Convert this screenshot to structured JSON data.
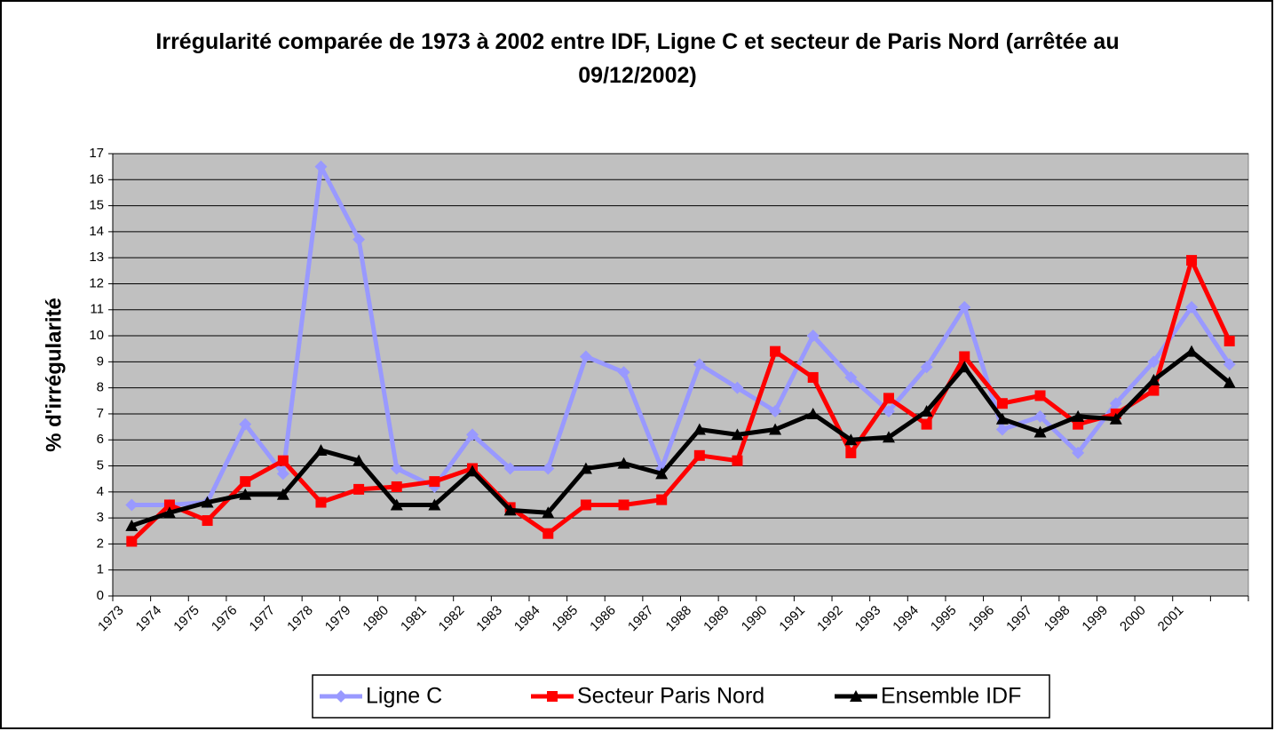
{
  "chart_data": {
    "type": "line",
    "title": "Irrégularité comparée de 1973 à 2002 entre IDF, Ligne C et secteur de Paris Nord (arrêtée au 09/12/2002)",
    "y_label": "% d'irrégularité",
    "categories": [
      "1973",
      "1974",
      "1975",
      "1976",
      "1977",
      "1978",
      "1979",
      "1980",
      "1981",
      "1982",
      "1983",
      "1984",
      "1985",
      "1986",
      "1987",
      "1988",
      "1989",
      "1990",
      "1991",
      "1992",
      "1993",
      "1994",
      "1995",
      "1996",
      "1997",
      "1998",
      "1999",
      "2000",
      "2001",
      null
    ],
    "series": [
      {
        "name": "Ligne C",
        "color": "#9999ff",
        "marker": "diamond",
        "values": [
          3.5,
          3.5,
          3.6,
          6.6,
          4.7,
          16.5,
          13.7,
          4.9,
          4.2,
          6.2,
          4.9,
          4.9,
          9.2,
          8.6,
          4.9,
          8.9,
          8.0,
          7.1,
          10.0,
          8.4,
          7.1,
          8.8,
          11.1,
          6.4,
          6.9,
          5.5,
          7.4,
          9.0,
          11.1,
          8.9
        ]
      },
      {
        "name": "Secteur Paris Nord",
        "color": "#ff0000",
        "marker": "square",
        "values": [
          2.1,
          3.5,
          2.9,
          4.4,
          5.2,
          3.6,
          4.1,
          4.2,
          4.4,
          4.9,
          3.4,
          2.4,
          3.5,
          3.5,
          3.7,
          5.4,
          5.2,
          9.4,
          8.4,
          5.5,
          7.6,
          6.6,
          9.2,
          7.4,
          7.7,
          6.6,
          7.0,
          7.9,
          12.9,
          9.8
        ]
      },
      {
        "name": "Ensemble IDF",
        "color": "#000000",
        "marker": "triangle",
        "values": [
          2.7,
          3.2,
          3.6,
          3.9,
          3.9,
          5.6,
          5.2,
          3.5,
          3.5,
          4.8,
          3.3,
          3.2,
          4.9,
          5.1,
          4.7,
          6.4,
          6.2,
          6.4,
          7.0,
          6.0,
          6.1,
          7.1,
          8.8,
          6.8,
          6.3,
          6.9,
          6.8,
          8.3,
          9.4,
          8.2
        ]
      }
    ],
    "ylim": [
      0,
      17
    ],
    "yticks": [
      0,
      1,
      2,
      3,
      4,
      5,
      6,
      7,
      8,
      9,
      10,
      11,
      12,
      13,
      14,
      15,
      16,
      17
    ],
    "grid": true,
    "legend": "bottom"
  }
}
